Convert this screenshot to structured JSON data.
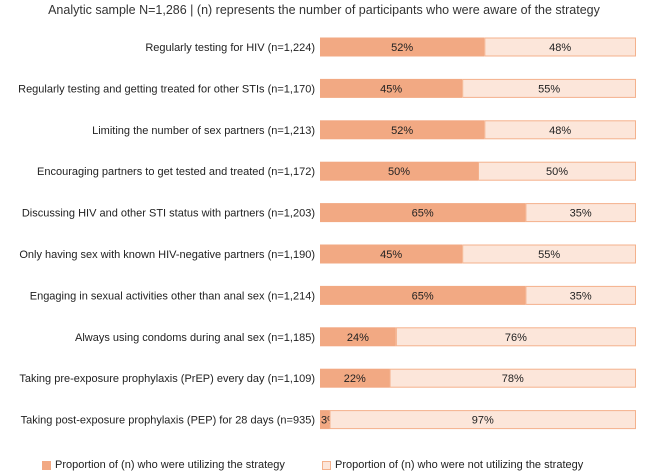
{
  "chart_data": {
    "type": "bar",
    "orientation": "horizontal",
    "stacked": true,
    "percent_stacked": true,
    "title": "Analytic sample N=1,286 | (n) represents the number of participants who were aware of the strategy",
    "categories": [
      "Regularly testing for HIV (n=1,224)",
      "Regularly testing and getting treated for other STIs (n=1,170)",
      "Limiting the number of sex partners (n=1,213)",
      "Encouraging partners to get tested and treated (n=1,172)",
      "Discussing HIV and other STI status with partners (n=1,203)",
      "Only having sex with known HIV-negative partners (n=1,190)",
      "Engaging in sexual activities other than anal sex (n=1,214)",
      "Always using condoms during anal sex (n=1,185)",
      "Taking pre-exposure prophylaxis (PrEP) every day (n=1,109)",
      "Taking post-exposure prophylaxis (PEP) for 28 days (n=935)"
    ],
    "series": [
      {
        "name": "Proportion of (n) who were utilizing the strategy",
        "color": "#f2a983",
        "edge": "#f2a983",
        "values": [
          52,
          45,
          52,
          50,
          65,
          45,
          65,
          24,
          22,
          3
        ],
        "labels": [
          "52%",
          "45%",
          "52%",
          "50%",
          "65%",
          "45%",
          "65%",
          "24%",
          "22%",
          "3%"
        ]
      },
      {
        "name": "Proportion of (n) who were not utilizing the strategy",
        "color": "#fce6da",
        "edge": "#f4b18c",
        "values": [
          48,
          55,
          48,
          50,
          35,
          55,
          35,
          76,
          78,
          97
        ],
        "labels": [
          "48%",
          "55%",
          "48%",
          "50%",
          "35%",
          "55%",
          "35%",
          "76%",
          "78%",
          "97%"
        ]
      }
    ],
    "xlim": [
      0,
      100
    ],
    "legend_position": "bottom",
    "grid": false
  }
}
